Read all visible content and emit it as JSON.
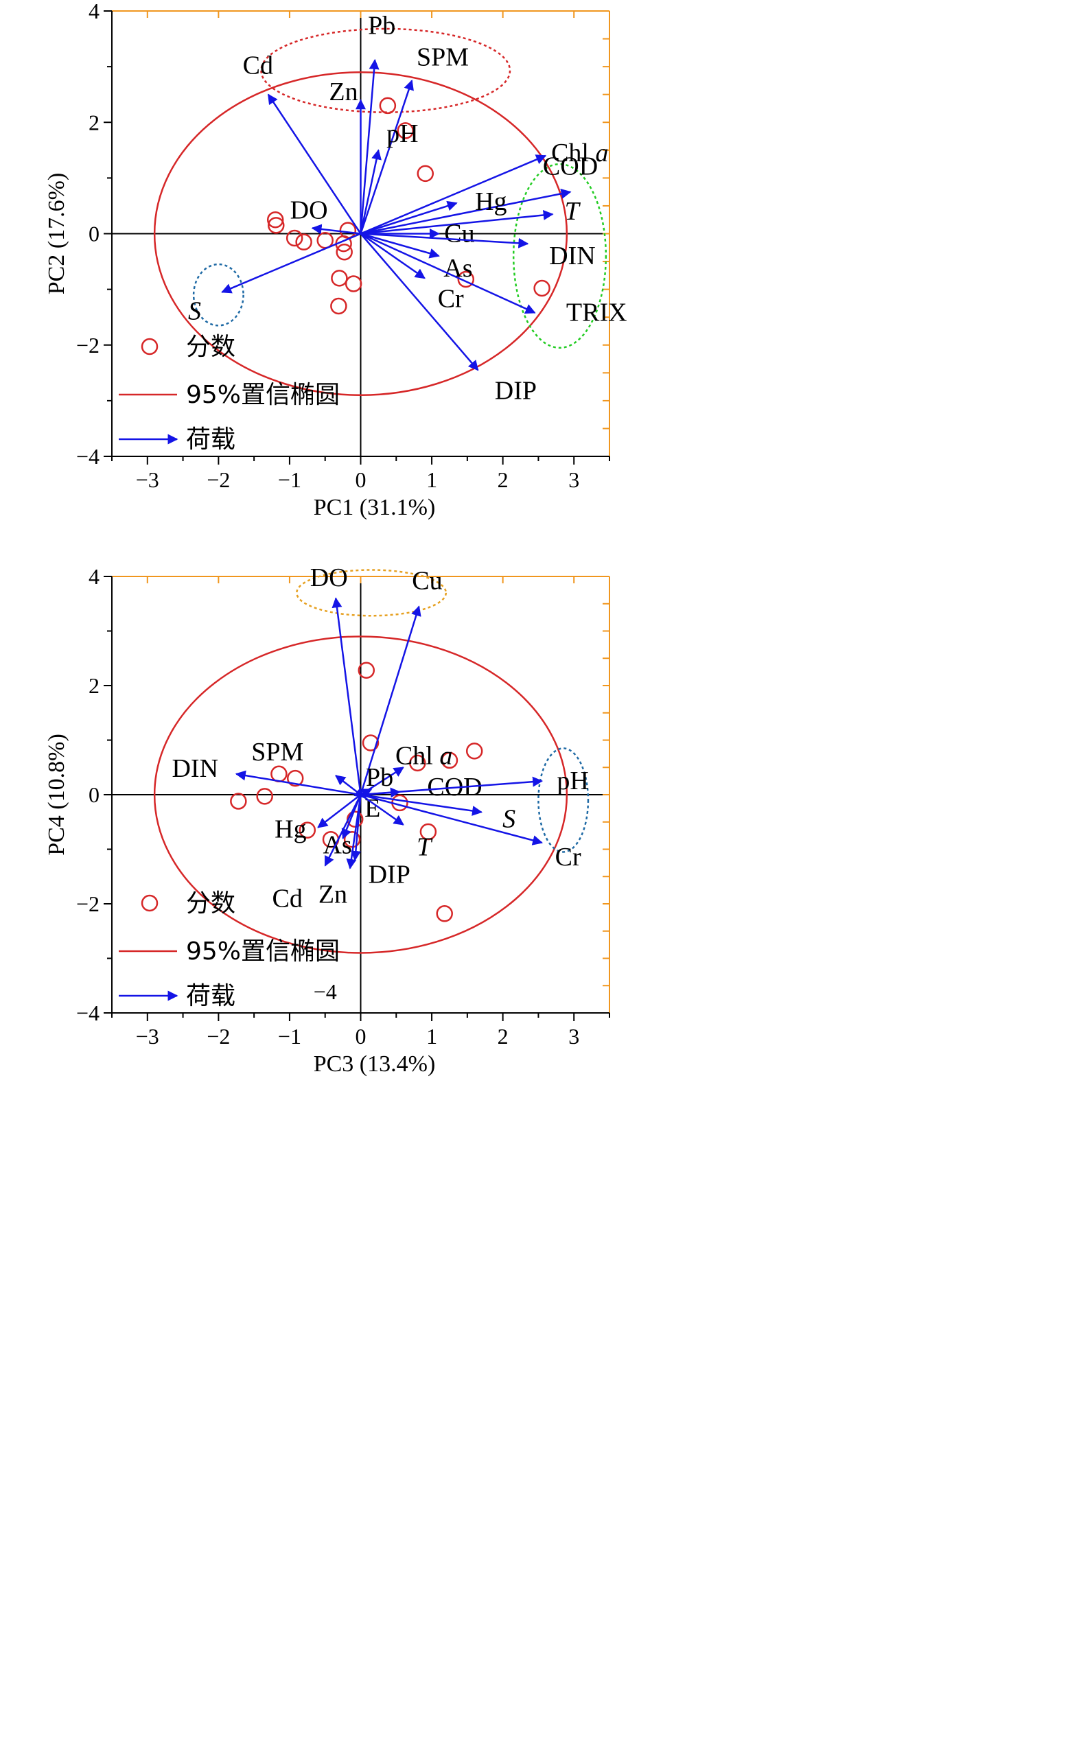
{
  "colors": {
    "ellipse": "#d62728",
    "arrow": "#1414e6",
    "score": "#d62728",
    "axis_main": "#000000",
    "axis_secondary": "#f0961e",
    "group_red": "#d62728",
    "group_green": "#22cc22",
    "group_blue": "#1f6aa5",
    "group_orange": "#e6a020"
  },
  "legend": {
    "score_label": "分数",
    "ellipse_label": "95%置信椭圆",
    "loading_label": "荷载"
  },
  "chart_data": [
    {
      "type": "scatter",
      "subtype": "PCA biplot",
      "xlabel": "PC1 (31.1%)",
      "ylabel": "PC2 (17.6%)",
      "xlim": [
        -3.5,
        3.5
      ],
      "ylim": [
        -4,
        4
      ],
      "xticks": [
        -3,
        -2,
        -1,
        0,
        1,
        2,
        3
      ],
      "xtick_labels": [
        "−3",
        "−2",
        "−1",
        "0",
        "1",
        "2",
        "3"
      ],
      "yticks": [
        -4,
        -2,
        0,
        2,
        4
      ],
      "ytick_labels": [
        "−4",
        "−2",
        "0",
        "2",
        "4"
      ],
      "ellipse": {
        "cx": 0,
        "cy": 0,
        "rx": 2.9,
        "ry": 2.9
      },
      "legend_position": "bottom-left",
      "grid": false,
      "scores": [
        {
          "x": 0.38,
          "y": 2.3
        },
        {
          "x": 0.63,
          "y": 1.85
        },
        {
          "x": 0.91,
          "y": 1.08
        },
        {
          "x": -1.2,
          "y": 0.25
        },
        {
          "x": -1.19,
          "y": 0.15
        },
        {
          "x": -0.93,
          "y": -0.08
        },
        {
          "x": -0.8,
          "y": -0.15
        },
        {
          "x": -0.5,
          "y": -0.12
        },
        {
          "x": -0.18,
          "y": 0.06
        },
        {
          "x": -0.24,
          "y": -0.18
        },
        {
          "x": -0.23,
          "y": -0.33
        },
        {
          "x": -0.3,
          "y": -0.8
        },
        {
          "x": -0.1,
          "y": -0.9
        },
        {
          "x": -0.31,
          "y": -1.3
        },
        {
          "x": 1.48,
          "y": -0.82
        },
        {
          "x": 2.55,
          "y": -0.98
        }
      ],
      "loadings": [
        {
          "name": "Pb",
          "x": 0.2,
          "y": 3.12,
          "label_html": "Pb"
        },
        {
          "name": "SPM",
          "x": 0.72,
          "y": 2.75,
          "label_html": "SPM"
        },
        {
          "name": "Zn",
          "x": 0.0,
          "y": 2.4,
          "label_html": "Zn"
        },
        {
          "name": "Cd",
          "x": -1.3,
          "y": 2.5,
          "label_html": "Cd"
        },
        {
          "name": "pH",
          "x": 0.25,
          "y": 1.5,
          "label_html": "pH"
        },
        {
          "name": "Chl a",
          "x": 2.6,
          "y": 1.4,
          "label_main": "Chl ",
          "label_italic": "a"
        },
        {
          "name": "COD",
          "x": 2.95,
          "y": 0.75,
          "label_html": "COD"
        },
        {
          "name": "Hg",
          "x": 1.35,
          "y": 0.55,
          "label_html": "Hg"
        },
        {
          "name": "T",
          "x": 2.7,
          "y": 0.35,
          "label_italic": "T"
        },
        {
          "name": "DO",
          "x": -0.68,
          "y": 0.1,
          "label_html": "DO"
        },
        {
          "name": "Cu",
          "x": 1.1,
          "y": 0.0,
          "label_html": "Cu"
        },
        {
          "name": "DIN",
          "x": 2.35,
          "y": -0.18,
          "label_html": "DIN"
        },
        {
          "name": "As",
          "x": 1.1,
          "y": -0.4,
          "label_html": "As"
        },
        {
          "name": "Cr",
          "x": 0.9,
          "y": -0.8,
          "label_html": "Cr"
        },
        {
          "name": "TRIX",
          "x": 2.45,
          "y": -1.42,
          "label_html": "TRIX"
        },
        {
          "name": "S",
          "x": -1.95,
          "y": -1.05,
          "label_italic": "S"
        },
        {
          "name": "DIP",
          "x": 1.65,
          "y": -2.45,
          "label_html": "DIP"
        }
      ],
      "groups": [
        {
          "color": "red",
          "cx": 0.35,
          "cy": 2.93,
          "rx": 1.75,
          "ry": 0.75
        },
        {
          "color": "green",
          "cx": 2.8,
          "cy": -0.4,
          "rx": 0.65,
          "ry": 1.65
        },
        {
          "color": "blue",
          "cx": -2.0,
          "cy": -1.1,
          "rx": 0.35,
          "ry": 0.55
        }
      ]
    },
    {
      "type": "scatter",
      "subtype": "PCA biplot",
      "xlabel": "PC3 (13.4%)",
      "ylabel": "PC4 (10.8%)",
      "xlim": [
        -3.5,
        3.5
      ],
      "ylim": [
        -4,
        4
      ],
      "xticks": [
        -3,
        -2,
        -1,
        0,
        1,
        2,
        3
      ],
      "xtick_labels": [
        "−3",
        "−2",
        "−1",
        "0",
        "1",
        "2",
        "3"
      ],
      "yticks": [
        -4,
        -2,
        0,
        2,
        4
      ],
      "ytick_labels": [
        "−4",
        "−2",
        "0",
        "2",
        "4"
      ],
      "ellipse": {
        "cx": 0,
        "cy": 0,
        "rx": 2.9,
        "ry": 2.9
      },
      "legend_position": "bottom-left",
      "grid": false,
      "extra_text": "−4",
      "scores": [
        {
          "x": 0.08,
          "y": 2.28
        },
        {
          "x": 0.14,
          "y": 0.95
        },
        {
          "x": 0.8,
          "y": 0.58
        },
        {
          "x": 1.25,
          "y": 0.63
        },
        {
          "x": 1.6,
          "y": 0.8
        },
        {
          "x": -1.15,
          "y": 0.38
        },
        {
          "x": -0.92,
          "y": 0.3
        },
        {
          "x": -1.72,
          "y": -0.12
        },
        {
          "x": -1.35,
          "y": -0.03
        },
        {
          "x": 0.55,
          "y": -0.15
        },
        {
          "x": 0.95,
          "y": -0.68
        },
        {
          "x": -0.08,
          "y": -0.45
        },
        {
          "x": -0.75,
          "y": -0.65
        },
        {
          "x": -0.42,
          "y": -0.82
        },
        {
          "x": -0.12,
          "y": -0.82
        },
        {
          "x": 1.18,
          "y": -2.18
        }
      ],
      "loadings": [
        {
          "name": "DO",
          "x": -0.35,
          "y": 3.6,
          "label_html": "DO"
        },
        {
          "name": "Cu",
          "x": 0.82,
          "y": 3.45,
          "label_html": "Cu"
        },
        {
          "name": "Chl a",
          "x": 0.6,
          "y": 0.5,
          "label_main": "Chl ",
          "label_italic": "a"
        },
        {
          "name": "SPM",
          "x": -0.35,
          "y": 0.35,
          "label_html": "SPM"
        },
        {
          "name": "Pb",
          "x": 0.15,
          "y": 0.1,
          "label_html": "Pb"
        },
        {
          "name": "COD",
          "x": 0.55,
          "y": 0.05,
          "label_html": "COD"
        },
        {
          "name": "DIN",
          "x": -1.75,
          "y": 0.38,
          "label_html": "DIN"
        },
        {
          "name": "pH",
          "x": 2.55,
          "y": 0.25,
          "label_html": "pH"
        },
        {
          "name": "E",
          "x": 0.05,
          "y": -0.05,
          "label_html": "E"
        },
        {
          "name": "S",
          "x": 1.7,
          "y": -0.32,
          "label_italic": "S"
        },
        {
          "name": "Cr",
          "x": 2.55,
          "y": -0.88,
          "label_html": "Cr"
        },
        {
          "name": "T",
          "x": 0.6,
          "y": -0.55,
          "label_italic": "T"
        },
        {
          "name": "Hg",
          "x": -0.6,
          "y": -0.6,
          "label_html": "Hg"
        },
        {
          "name": "As",
          "x": -0.25,
          "y": -0.8,
          "label_html": "As"
        },
        {
          "name": "Cd",
          "x": -0.5,
          "y": -1.3,
          "label_html": "Cd"
        },
        {
          "name": "Zn",
          "x": -0.15,
          "y": -1.35,
          "label_html": "Zn"
        },
        {
          "name": "DIP",
          "x": -0.08,
          "y": -1.2,
          "label_html": "DIP"
        }
      ],
      "groups": [
        {
          "color": "orange",
          "cx": 0.15,
          "cy": 3.7,
          "rx": 1.05,
          "ry": 0.42
        },
        {
          "color": "blue",
          "cx": 2.85,
          "cy": -0.1,
          "rx": 0.35,
          "ry": 0.95
        }
      ]
    }
  ]
}
